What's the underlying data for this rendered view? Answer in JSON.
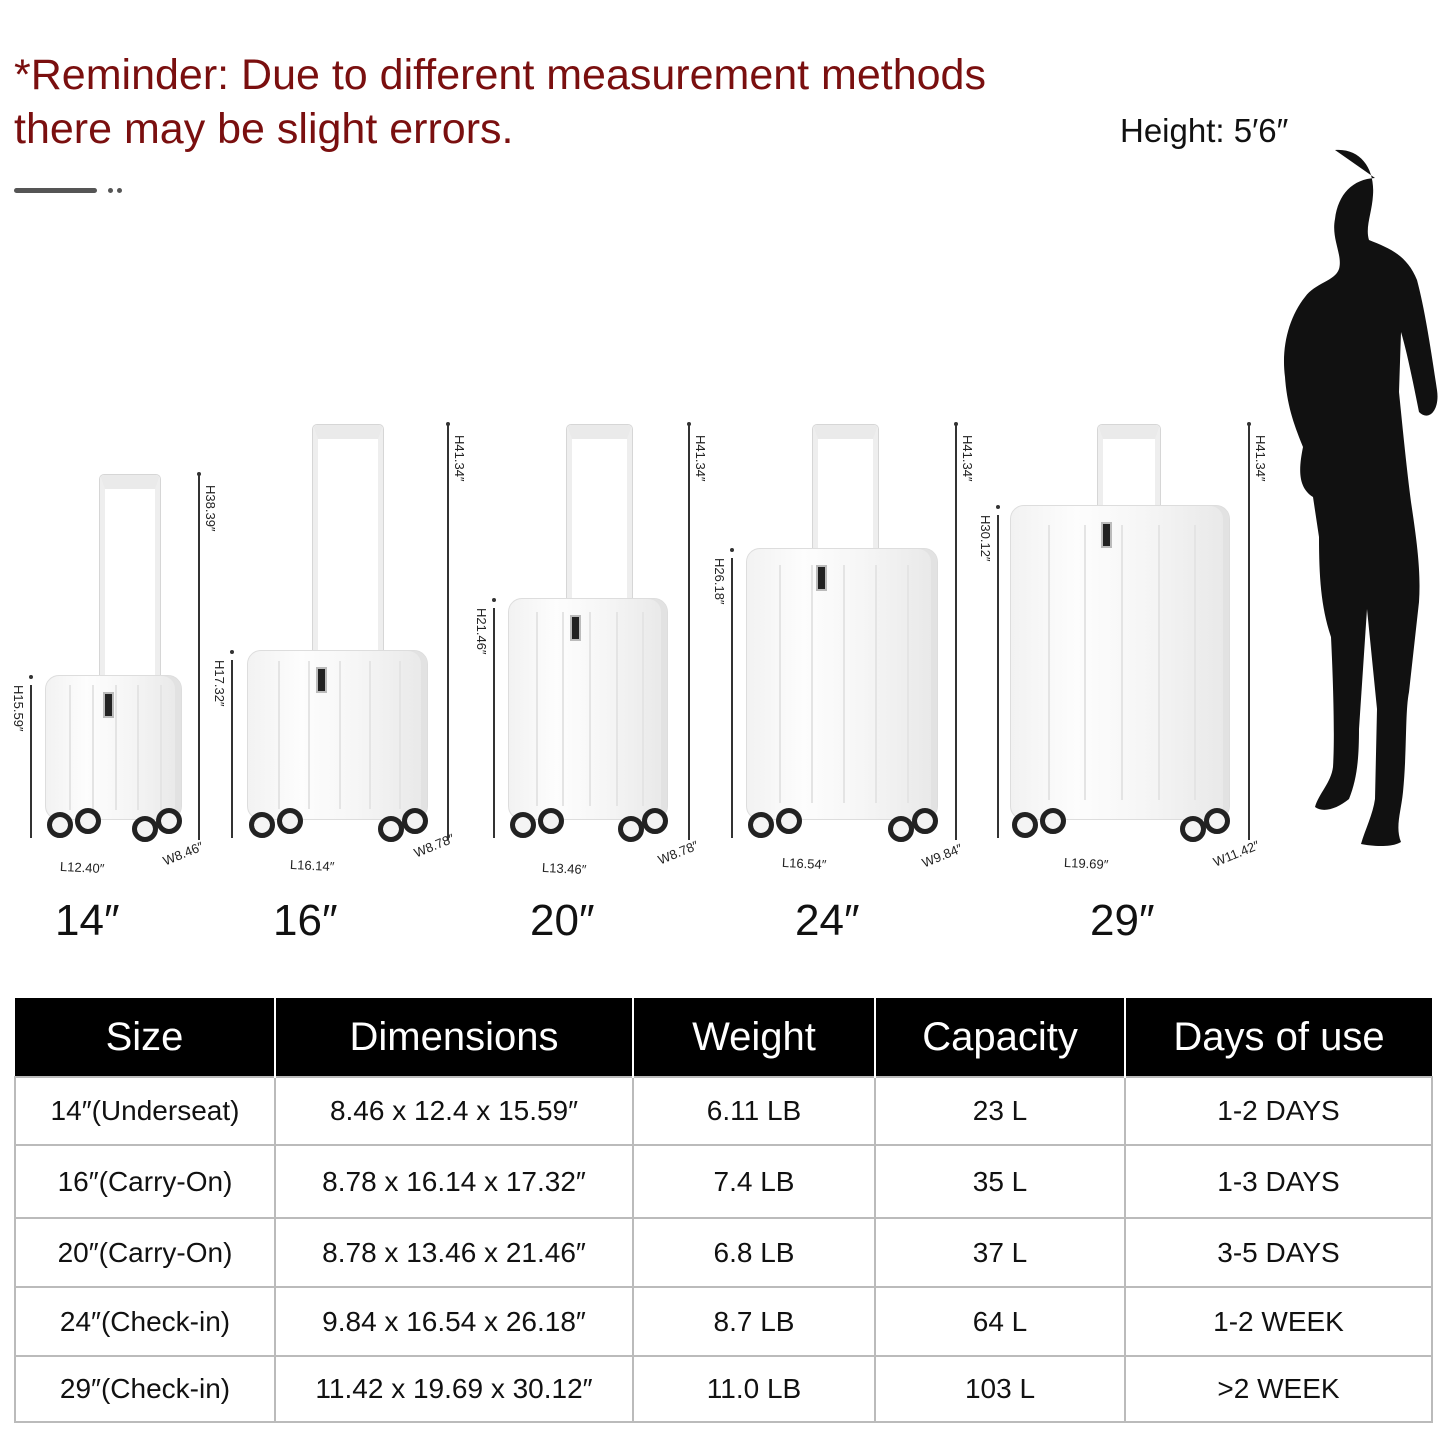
{
  "reminder": {
    "line1": "*Reminder: Due to different measurement methods",
    "line2": "there may be slight errors.",
    "color": "#7a0f0f"
  },
  "person": {
    "height_label": "Height: 5′6″"
  },
  "suitcases": [
    {
      "size": "14″",
      "total_height": "H38.39″",
      "body_height": "H15.59″",
      "length": "L12.40″",
      "width": "W8.46″"
    },
    {
      "size": "16″",
      "total_height": "H41.34″",
      "body_height": "H17.32″",
      "length": "L16.14″",
      "width": "W8.78″"
    },
    {
      "size": "20″",
      "total_height": "H41.34″",
      "body_height": "H21.46″",
      "length": "L13.46″",
      "width": "W8.78″"
    },
    {
      "size": "24″",
      "total_height": "H41.34″",
      "body_height": "H26.18″",
      "length": "L16.54″",
      "width": "W9.84″"
    },
    {
      "size": "29″",
      "total_height": "H41.34″",
      "body_height": "H30.12″",
      "length": "L19.69″",
      "width": "W11.42″"
    }
  ],
  "table": {
    "headers": [
      "Size",
      "Dimensions",
      "Weight",
      "Capacity",
      "Days of use"
    ],
    "rows": [
      [
        "14″(Underseat)",
        "8.46 x 12.4 x 15.59″",
        "6.11 LB",
        "23 L",
        "1-2 DAYS"
      ],
      [
        "16″(Carry-On)",
        "8.78 x 16.14 x 17.32″",
        "7.4 LB",
        "35 L",
        "1-3 DAYS"
      ],
      [
        "20″(Carry-On)",
        "8.78 x 13.46 x 21.46″",
        "6.8 LB",
        "37 L",
        "3-5 DAYS"
      ],
      [
        "24″(Check-in)",
        "9.84 x 16.54 x 26.18″",
        "8.7 LB",
        "64 L",
        "1-2 WEEK"
      ],
      [
        "29″(Check-in)",
        "11.42 x 19.69 x 30.12″",
        "11.0 LB",
        "103 L",
        ">2 WEEK"
      ]
    ]
  }
}
